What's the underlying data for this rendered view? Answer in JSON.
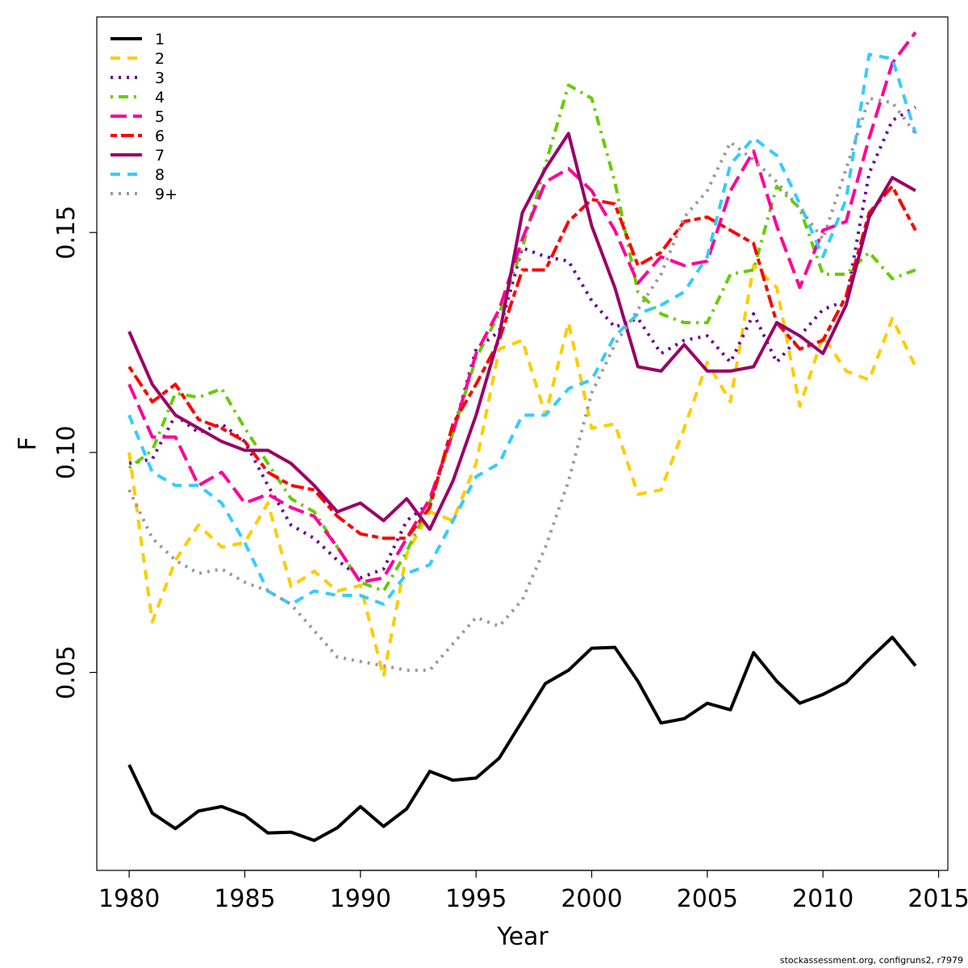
{
  "footer": "stockassessment.org, configruns2, r7979",
  "chart_data": {
    "type": "line",
    "xlabel": "Year",
    "ylabel": "F",
    "xlim": [
      1978.6,
      2015.4
    ],
    "ylim": [
      0.005,
      0.199
    ],
    "x_ticks": [
      1980,
      1985,
      1990,
      1995,
      2000,
      2005,
      2010,
      2015
    ],
    "x_tick_labels": [
      "1980",
      "1985",
      "1990",
      "1995",
      "2000",
      "2005",
      "2010",
      "2015"
    ],
    "y_ticks": [
      0.05,
      0.1,
      0.15
    ],
    "y_tick_labels": [
      "0.05",
      "0.10",
      "0.15"
    ],
    "grid": false,
    "legend_position": "top-left",
    "x": [
      1980,
      1981,
      1982,
      1983,
      1984,
      1985,
      1986,
      1987,
      1988,
      1989,
      1990,
      1991,
      1992,
      1993,
      1994,
      1995,
      1996,
      1997,
      1998,
      1999,
      2000,
      2001,
      2002,
      2003,
      2004,
      2005,
      2006,
      2007,
      2008,
      2009,
      2010,
      2011,
      2012,
      2013,
      2014
    ],
    "series": [
      {
        "name": "1",
        "color": "#000000",
        "dash": "solid",
        "values": [
          0.029,
          0.018,
          0.0145,
          0.0185,
          0.0195,
          0.0175,
          0.0135,
          0.0137,
          0.0118,
          0.0147,
          0.0195,
          0.015,
          0.019,
          0.0275,
          0.0255,
          0.026,
          0.0305,
          0.039,
          0.0475,
          0.0505,
          0.0555,
          0.0557,
          0.048,
          0.0385,
          0.0395,
          0.043,
          0.0415,
          0.0545,
          0.048,
          0.043,
          0.045,
          0.0477,
          0.053,
          0.058,
          0.0515
        ]
      },
      {
        "name": "2",
        "color": "#FFCC00",
        "dash": "dashed",
        "values": [
          0.1,
          0.0615,
          0.0755,
          0.0835,
          0.0785,
          0.0795,
          0.0885,
          0.0695,
          0.073,
          0.0685,
          0.0698,
          0.049,
          0.077,
          0.0865,
          0.0845,
          0.0975,
          0.1235,
          0.1255,
          0.1085,
          0.1295,
          0.1055,
          0.1065,
          0.0905,
          0.0915,
          0.1055,
          0.1205,
          0.1115,
          0.1425,
          0.1375,
          0.1105,
          0.1265,
          0.1185,
          0.1165,
          0.1305,
          0.1195
        ]
      },
      {
        "name": "3",
        "color": "#660099",
        "dash": "dotted",
        "values": [
          0.0975,
          0.0985,
          0.1085,
          0.1045,
          0.1065,
          0.1025,
          0.0925,
          0.0835,
          0.0805,
          0.0755,
          0.0715,
          0.0735,
          0.0845,
          0.0885,
          0.1045,
          0.1235,
          0.1275,
          0.1465,
          0.1445,
          0.1435,
          0.1345,
          0.1285,
          0.1305,
          0.1225,
          0.1255,
          0.1265,
          0.1205,
          0.1315,
          0.1205,
          0.1265,
          0.1325,
          0.1345,
          0.1635,
          0.1755,
          0.1785
        ]
      },
      {
        "name": "4",
        "color": "#66CC00",
        "dash": "dotdash",
        "values": [
          0.0965,
          0.1005,
          0.1135,
          0.1125,
          0.1145,
          0.1055,
          0.0975,
          0.0895,
          0.0865,
          0.0785,
          0.0705,
          0.0685,
          0.0775,
          0.0885,
          0.1045,
          0.1215,
          0.1315,
          0.1465,
          0.1655,
          0.1835,
          0.1805,
          0.1615,
          0.1365,
          0.1315,
          0.1295,
          0.1295,
          0.1405,
          0.1415,
          0.1605,
          0.1555,
          0.1405,
          0.1405,
          0.1455,
          0.1395,
          0.1415
        ]
      },
      {
        "name": "5",
        "color": "#FF0099",
        "dash": "longdash",
        "values": [
          0.1155,
          0.1035,
          0.1035,
          0.0925,
          0.0955,
          0.0885,
          0.0905,
          0.0875,
          0.0855,
          0.0785,
          0.0705,
          0.0715,
          0.0805,
          0.0895,
          0.1045,
          0.1225,
          0.1325,
          0.1485,
          0.1615,
          0.1645,
          0.1595,
          0.1505,
          0.1385,
          0.1445,
          0.1425,
          0.1435,
          0.1595,
          0.1685,
          0.1515,
          0.1375,
          0.1505,
          0.1525,
          0.1715,
          0.1885,
          0.1955
        ]
      },
      {
        "name": "6",
        "color": "#FF0000",
        "dash": "twodash",
        "values": [
          0.1195,
          0.1115,
          0.1155,
          0.1075,
          0.1055,
          0.1025,
          0.0955,
          0.0925,
          0.0915,
          0.0855,
          0.0815,
          0.0805,
          0.0805,
          0.0875,
          0.1065,
          0.1155,
          0.1255,
          0.1415,
          0.1415,
          0.1525,
          0.1575,
          0.1565,
          0.1425,
          0.1455,
          0.1525,
          0.1535,
          0.1505,
          0.1475,
          0.1295,
          0.1235,
          0.1255,
          0.1355,
          0.1545,
          0.1605,
          0.1505
        ]
      },
      {
        "name": "7",
        "color": "#990066",
        "dash": "solid",
        "values": [
          0.1275,
          0.1155,
          0.1085,
          0.1055,
          0.1025,
          0.1005,
          0.1005,
          0.0975,
          0.0925,
          0.0865,
          0.0885,
          0.0845,
          0.0895,
          0.0825,
          0.0935,
          0.1085,
          0.1265,
          0.1545,
          0.1645,
          0.1725,
          0.1515,
          0.1375,
          0.1195,
          0.1185,
          0.1245,
          0.1185,
          0.1185,
          0.1195,
          0.1295,
          0.1265,
          0.1225,
          0.1335,
          0.1535,
          0.1625,
          0.1595
        ]
      },
      {
        "name": "8",
        "color": "#33CCFF",
        "dash": "dashed",
        "values": [
          0.1085,
          0.0955,
          0.0925,
          0.0925,
          0.0885,
          0.0795,
          0.0685,
          0.0655,
          0.0685,
          0.0675,
          0.0675,
          0.0655,
          0.0725,
          0.0745,
          0.0845,
          0.0945,
          0.0975,
          0.1085,
          0.1085,
          0.1145,
          0.1165,
          0.1265,
          0.1315,
          0.1335,
          0.1365,
          0.1445,
          0.1655,
          0.1715,
          0.1675,
          0.1565,
          0.1445,
          0.1575,
          0.1905,
          0.1895,
          0.1725
        ]
      },
      {
        "name": "9+",
        "color": "#999999",
        "dash": "dotted",
        "values": [
          0.0915,
          0.0805,
          0.0755,
          0.0725,
          0.0735,
          0.0705,
          0.0685,
          0.0655,
          0.0595,
          0.0535,
          0.0525,
          0.0515,
          0.0505,
          0.0505,
          0.0565,
          0.0625,
          0.0605,
          0.0665,
          0.0785,
          0.0935,
          0.1135,
          0.1245,
          0.1325,
          0.1405,
          0.1535,
          0.1595,
          0.1705,
          0.1665,
          0.1615,
          0.1555,
          0.1485,
          0.1645,
          0.1805,
          0.1795,
          0.1725
        ]
      }
    ]
  }
}
